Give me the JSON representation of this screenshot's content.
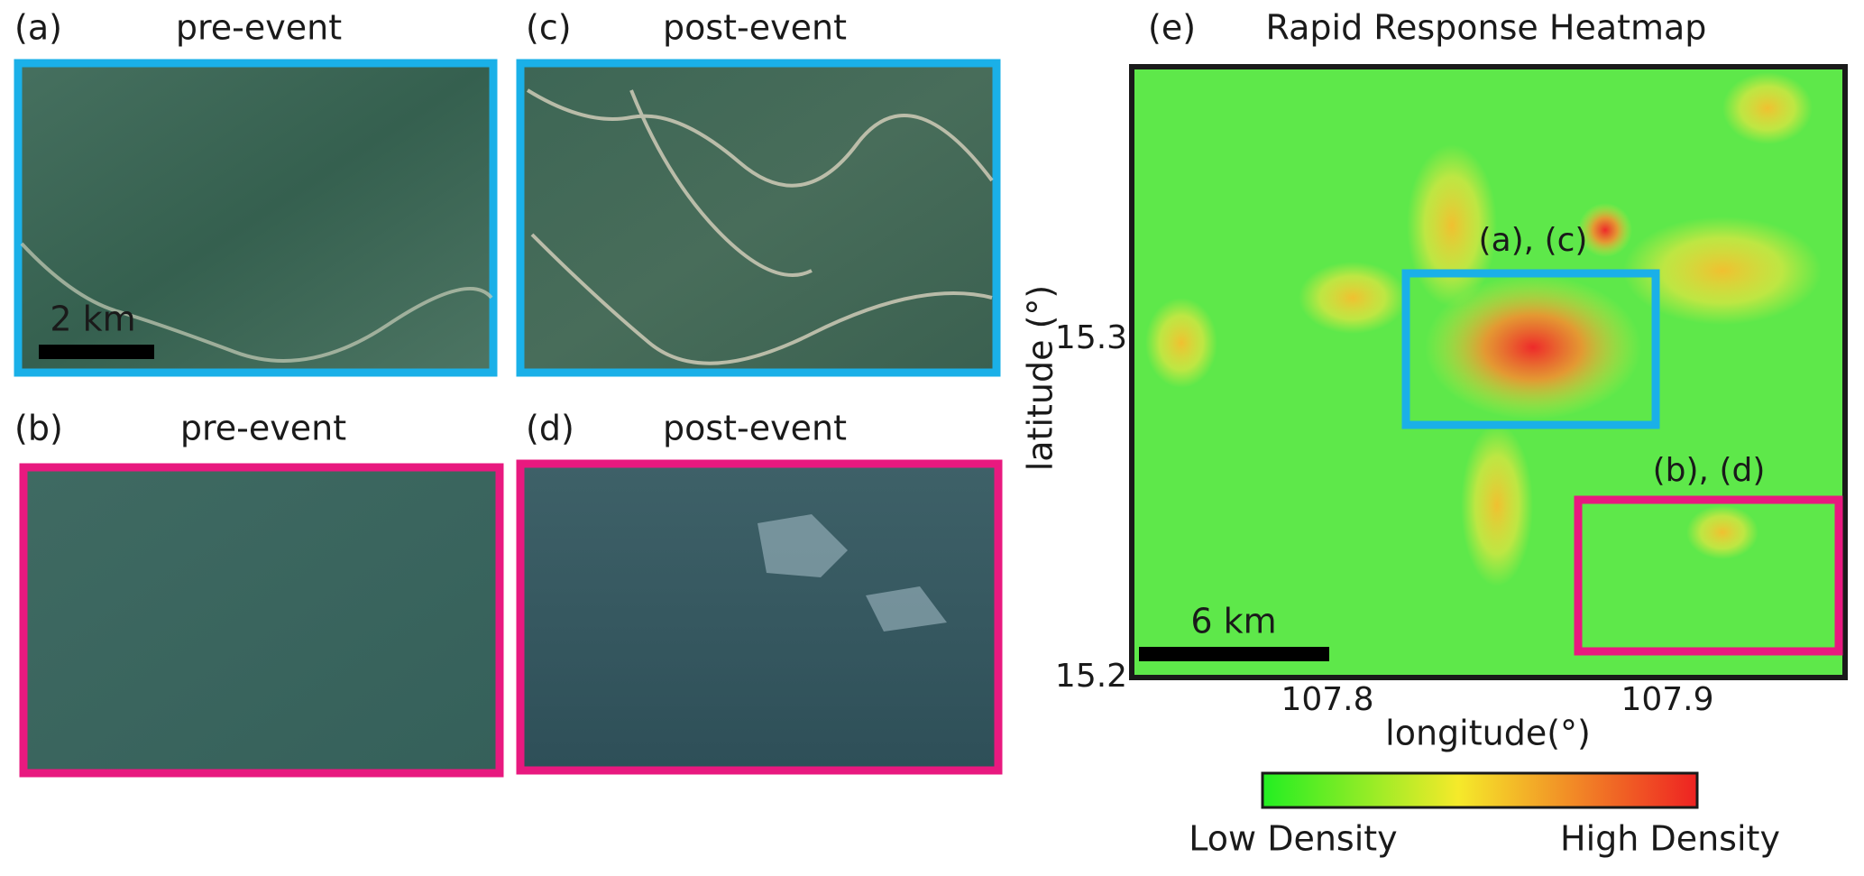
{
  "panels": [
    {
      "label": "(a)",
      "title": "pre-event",
      "scale_bar": "2 km"
    },
    {
      "label": "(c)",
      "title": "post-event"
    },
    {
      "label": "(b)",
      "title": "pre-event"
    },
    {
      "label": "(d)",
      "title": "post-event"
    }
  ],
  "heatmap": {
    "label": "(e)",
    "title": "Rapid Response Heatmap",
    "box_labels": [
      "(a), (c)",
      "(b), (d)"
    ],
    "scale_bar": "6 km",
    "x_label": "longitude(°)",
    "y_label": "latitude (°)",
    "xticks": [
      107.8,
      107.9
    ],
    "yticks": [
      15.3,
      15.2
    ],
    "colorbar": {
      "low": "Low Density",
      "high": "High Density"
    }
  }
}
